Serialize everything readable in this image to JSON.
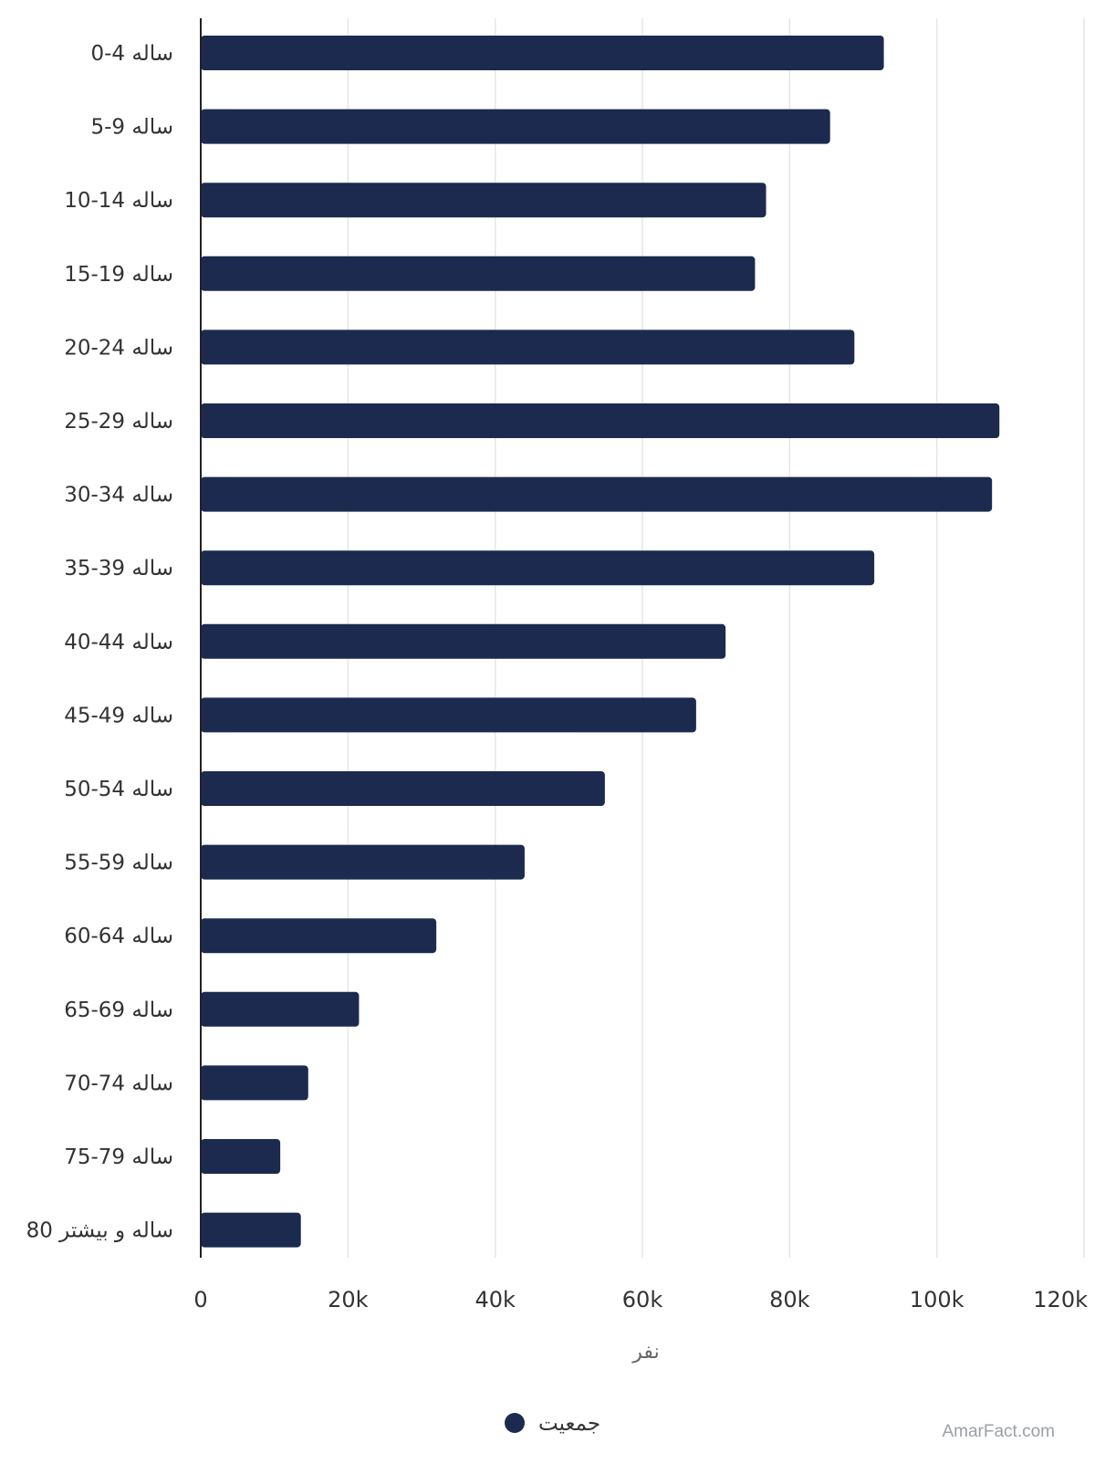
{
  "chart_data": {
    "type": "bar",
    "orientation": "horizontal",
    "categories": [
      "0-4 ساله",
      "5-9 ساله",
      "10-14 ساله",
      "15-19 ساله",
      "20-24 ساله",
      "25-29 ساله",
      "30-34 ساله",
      "35-39 ساله",
      "40-44 ساله",
      "45-49 ساله",
      "50-54 ساله",
      "55-59 ساله",
      "60-64 ساله",
      "65-69 ساله",
      "70-74 ساله",
      "75-79 ساله",
      "80 ساله و بیشتر"
    ],
    "series": [
      {
        "name": "جمعیت",
        "color": "#1b2a4e",
        "values": [
          92800,
          85500,
          76800,
          75300,
          88800,
          108500,
          107500,
          91500,
          71300,
          67300,
          54900,
          44000,
          32000,
          21500,
          14600,
          10800,
          13600
        ]
      }
    ],
    "xlabel": "نفر",
    "ylabel": "",
    "xlim": [
      0,
      120000
    ],
    "xticks": [
      0,
      20000,
      40000,
      60000,
      80000,
      100000,
      120000
    ],
    "xtick_labels": [
      "0",
      "20k",
      "40k",
      "60k",
      "80k",
      "100k",
      "120k"
    ],
    "grid": true,
    "legend_position": "bottom-center",
    "colors": {
      "bar": "#1b2a4e",
      "grid": "#e6e6e6",
      "axis": "#222222",
      "text": "#333333"
    }
  },
  "watermark": "AmarFact.com"
}
